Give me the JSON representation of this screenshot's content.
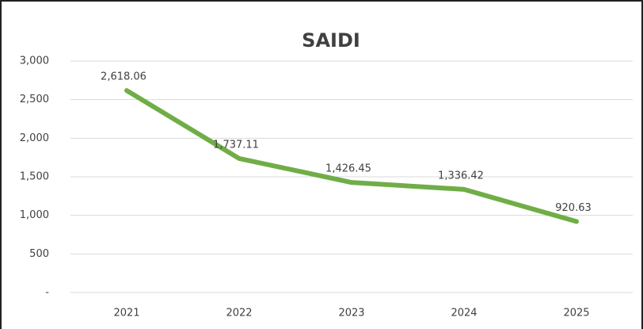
{
  "chart_data": {
    "type": "line",
    "title": "SAIDI",
    "categories": [
      "2021",
      "2022",
      "2023",
      "2024",
      "2025"
    ],
    "values": [
      2618.06,
      1737.11,
      1426.45,
      1336.42,
      920.63
    ],
    "value_labels": [
      "2,618.06",
      "1,737.11",
      "1,426.45",
      "1,336.42",
      "920.63"
    ],
    "color": "#70ad47",
    "ylim": [
      0,
      3000
    ],
    "yticks": [
      {
        "value": 0,
        "label": "-"
      },
      500,
      {
        "value": 1000,
        "label": "1,000"
      },
      {
        "value": 1500,
        "label": "1,500"
      },
      {
        "value": 2000,
        "label": "2,000"
      },
      {
        "value": 2500,
        "label": "2,500"
      },
      {
        "value": 3000,
        "label": "3,000"
      }
    ],
    "grid": true
  }
}
